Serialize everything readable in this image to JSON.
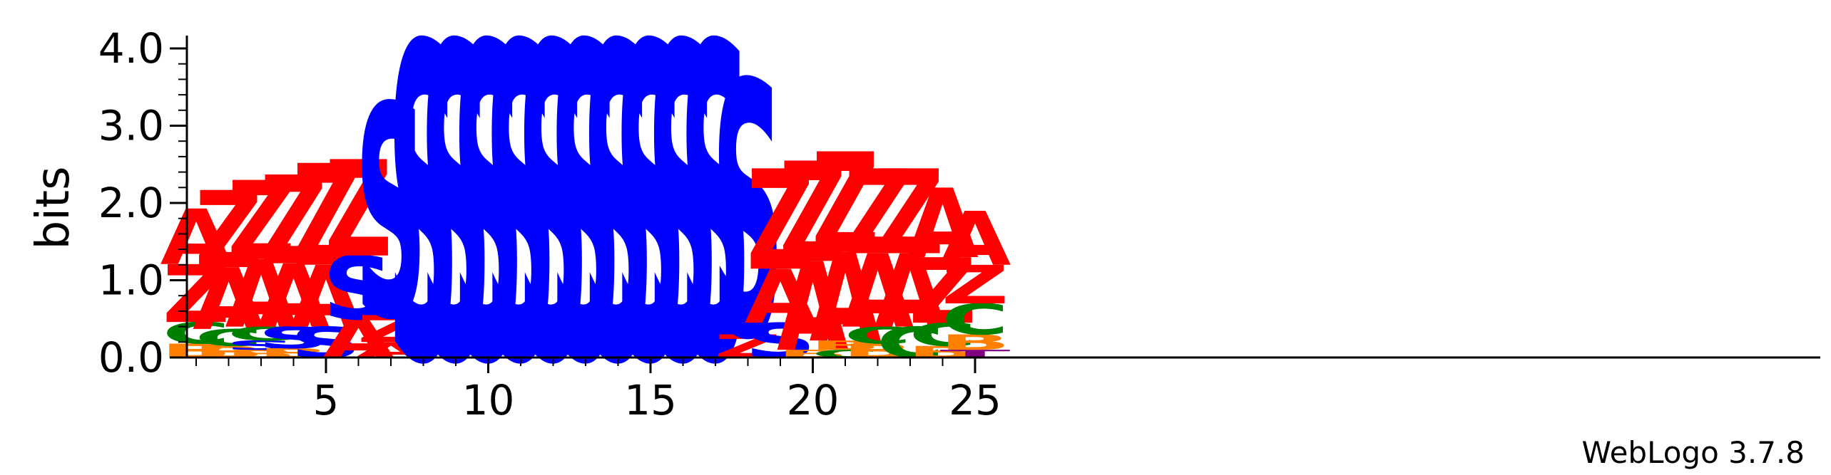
{
  "chart_data": {
    "type": "sequence_logo",
    "ylabel": "bits",
    "ylim": [
      0,
      4.0
    ],
    "y_ticks": [
      "0.0",
      "1.0",
      "2.0",
      "3.0",
      "4.0"
    ],
    "x_ticks": [
      "5",
      "10",
      "15",
      "20",
      "25"
    ],
    "footer": "WebLogo 3.7.8",
    "colors": {
      "A": "#ff0000",
      "Z": "#ff0000",
      "S": "#0000ff",
      "C": "#008000",
      "B": "#ff8000",
      "T": "#800080"
    },
    "positions": [
      {
        "pos": 1,
        "stack": [
          [
            "B",
            0.18
          ],
          [
            "C",
            0.28
          ],
          [
            "Z",
            0.75
          ],
          [
            "A",
            0.72
          ]
        ]
      },
      {
        "pos": 2,
        "stack": [
          [
            "B",
            0.15
          ],
          [
            "C",
            0.22
          ],
          [
            "A",
            0.8
          ],
          [
            "Z",
            1.0
          ]
        ]
      },
      {
        "pos": 3,
        "stack": [
          [
            "B",
            0.1
          ],
          [
            "S",
            0.12
          ],
          [
            "C",
            0.18
          ],
          [
            "A",
            0.88
          ],
          [
            "Z",
            1.02
          ]
        ]
      },
      {
        "pos": 4,
        "stack": [
          [
            "B",
            0.12
          ],
          [
            "S",
            0.28
          ],
          [
            "A",
            0.82
          ],
          [
            "Z",
            1.15
          ]
        ]
      },
      {
        "pos": 5,
        "stack": [
          [
            "S",
            0.4
          ],
          [
            "A",
            0.8
          ],
          [
            "Z",
            1.32
          ]
        ]
      },
      {
        "pos": 6,
        "stack": [
          [
            "A",
            0.5
          ],
          [
            "S",
            0.82
          ],
          [
            "Z",
            1.25
          ]
        ]
      },
      {
        "pos": 7,
        "stack": [
          [
            "A",
            0.2
          ],
          [
            "Z",
            0.35
          ],
          [
            "S",
            2.75
          ]
        ]
      },
      {
        "pos": 8,
        "stack": [
          [
            "S",
            4.1
          ]
        ]
      },
      {
        "pos": 9,
        "stack": [
          [
            "S",
            4.1
          ]
        ]
      },
      {
        "pos": 10,
        "stack": [
          [
            "S",
            4.1
          ]
        ]
      },
      {
        "pos": 11,
        "stack": [
          [
            "S",
            4.1
          ]
        ]
      },
      {
        "pos": 12,
        "stack": [
          [
            "S",
            4.1
          ]
        ]
      },
      {
        "pos": 13,
        "stack": [
          [
            "S",
            4.1
          ]
        ]
      },
      {
        "pos": 14,
        "stack": [
          [
            "S",
            4.1
          ]
        ]
      },
      {
        "pos": 15,
        "stack": [
          [
            "S",
            4.1
          ]
        ]
      },
      {
        "pos": 16,
        "stack": [
          [
            "S",
            4.1
          ]
        ]
      },
      {
        "pos": 17,
        "stack": [
          [
            "S",
            4.1
          ]
        ]
      },
      {
        "pos": 18,
        "stack": [
          [
            "Z",
            0.3
          ],
          [
            "S",
            3.3
          ]
        ]
      },
      {
        "pos": 19,
        "stack": [
          [
            "S",
            0.45
          ],
          [
            "A",
            0.7
          ],
          [
            "Z",
            1.3
          ]
        ]
      },
      {
        "pos": 20,
        "stack": [
          [
            "B",
            0.1
          ],
          [
            "A",
            1.15
          ],
          [
            "Z",
            1.3
          ]
        ]
      },
      {
        "pos": 21,
        "stack": [
          [
            "C",
            0.1
          ],
          [
            "B",
            0.12
          ],
          [
            "A",
            1.15
          ],
          [
            "Z",
            1.3
          ]
        ]
      },
      {
        "pos": 22,
        "stack": [
          [
            "B",
            0.18
          ],
          [
            "C",
            0.22
          ],
          [
            "A",
            0.95
          ],
          [
            "Z",
            1.1
          ]
        ]
      },
      {
        "pos": 23,
        "stack": [
          [
            "C",
            0.4
          ],
          [
            "A",
            0.95
          ],
          [
            "Z",
            1.1
          ]
        ]
      },
      {
        "pos": 24,
        "stack": [
          [
            "B",
            0.15
          ],
          [
            "C",
            0.3
          ],
          [
            "Z",
            0.85
          ],
          [
            "A",
            0.9
          ]
        ]
      },
      {
        "pos": 25,
        "stack": [
          [
            "T",
            0.1
          ],
          [
            "B",
            0.2
          ],
          [
            "C",
            0.4
          ],
          [
            "Z",
            0.5
          ],
          [
            "A",
            0.7
          ]
        ]
      }
    ]
  }
}
